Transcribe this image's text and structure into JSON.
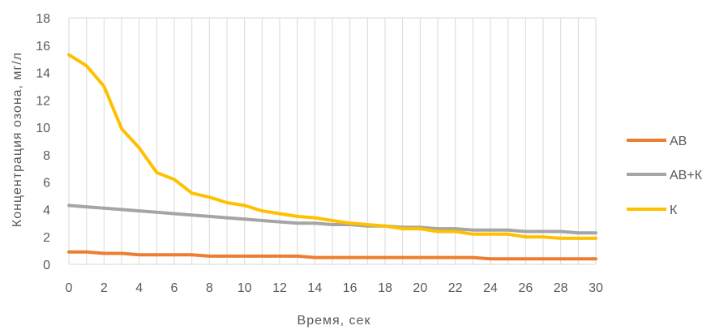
{
  "chart_data": {
    "type": "line",
    "xlabel": "Время,  сек",
    "ylabel": "Концентрация  озона, мг/л",
    "xlim": [
      0,
      30
    ],
    "ylim": [
      0,
      18
    ],
    "xticks": [
      0,
      2,
      4,
      6,
      8,
      10,
      12,
      14,
      16,
      18,
      20,
      22,
      24,
      26,
      28,
      30
    ],
    "yticks": [
      0,
      2,
      4,
      6,
      8,
      10,
      12,
      14,
      16,
      18
    ],
    "grid": "vertical",
    "legend_position": "right",
    "series": [
      {
        "name": "АВ",
        "color": "#ED7D31",
        "x": [
          0,
          1,
          2,
          3,
          4,
          5,
          6,
          7,
          8,
          9,
          10,
          11,
          12,
          13,
          14,
          15,
          16,
          17,
          18,
          19,
          20,
          21,
          22,
          23,
          24,
          25,
          26,
          27,
          28,
          29,
          30
        ],
        "y": [
          0.9,
          0.9,
          0.8,
          0.8,
          0.7,
          0.7,
          0.7,
          0.7,
          0.6,
          0.6,
          0.6,
          0.6,
          0.6,
          0.6,
          0.5,
          0.5,
          0.5,
          0.5,
          0.5,
          0.5,
          0.5,
          0.5,
          0.5,
          0.5,
          0.4,
          0.4,
          0.4,
          0.4,
          0.4,
          0.4,
          0.4
        ]
      },
      {
        "name": "АВ+К",
        "color": "#A5A5A5",
        "x": [
          0,
          1,
          2,
          3,
          4,
          5,
          6,
          7,
          8,
          9,
          10,
          11,
          12,
          13,
          14,
          15,
          16,
          17,
          18,
          19,
          20,
          21,
          22,
          23,
          24,
          25,
          26,
          27,
          28,
          29,
          30
        ],
        "y": [
          4.3,
          4.2,
          4.1,
          4.0,
          3.9,
          3.8,
          3.7,
          3.6,
          3.5,
          3.4,
          3.3,
          3.2,
          3.1,
          3.0,
          3.0,
          2.9,
          2.9,
          2.8,
          2.8,
          2.7,
          2.7,
          2.6,
          2.6,
          2.5,
          2.5,
          2.5,
          2.4,
          2.4,
          2.4,
          2.3,
          2.3
        ]
      },
      {
        "name": "К",
        "color": "#FFC000",
        "x": [
          0,
          1,
          2,
          3,
          4,
          5,
          6,
          7,
          8,
          9,
          10,
          11,
          12,
          13,
          14,
          15,
          16,
          17,
          18,
          19,
          20,
          21,
          22,
          23,
          24,
          25,
          26,
          27,
          28,
          29,
          30
        ],
        "y": [
          15.3,
          14.5,
          13.0,
          9.9,
          8.5,
          6.7,
          6.2,
          5.2,
          4.9,
          4.5,
          4.3,
          3.9,
          3.7,
          3.5,
          3.4,
          3.2,
          3.0,
          2.9,
          2.8,
          2.6,
          2.6,
          2.4,
          2.4,
          2.2,
          2.2,
          2.2,
          2.0,
          2.0,
          1.9,
          1.9,
          1.9
        ]
      }
    ]
  }
}
